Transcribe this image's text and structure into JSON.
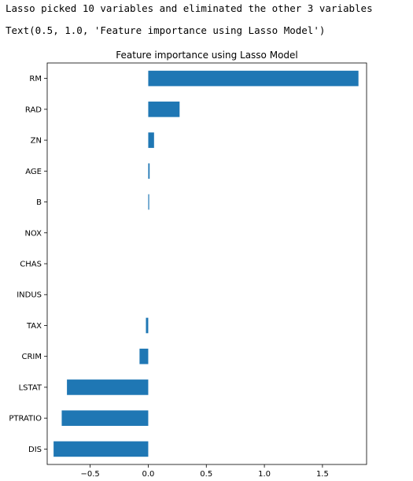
{
  "output": {
    "line1": "Lasso picked 10 variables and eliminated the other 3 variables",
    "line2": "Text(0.5, 1.0, 'Feature importance using Lasso Model')"
  },
  "chart_data": {
    "type": "bar",
    "orientation": "horizontal",
    "title": "Feature importance using Lasso Model",
    "xlabel": "",
    "ylabel": "",
    "categories": [
      "RM",
      "RAD",
      "ZN",
      "AGE",
      "B",
      "NOX",
      "CHAS",
      "INDUS",
      "TAX",
      "CRIM",
      "LSTAT",
      "PTRATIO",
      "DIS"
    ],
    "values": [
      1.81,
      0.27,
      0.05,
      0.012,
      0.008,
      0.0,
      0.0,
      0.0,
      -0.02,
      -0.075,
      -0.7,
      -0.745,
      -0.815
    ],
    "xticks": [
      -0.5,
      0.0,
      0.5,
      1.0,
      1.5
    ],
    "xtick_labels": [
      "−0.5",
      "0.0",
      "0.5",
      "1.0",
      "1.5"
    ],
    "xlim": [
      -0.87,
      1.88
    ],
    "bar_color": "#1f77b4",
    "grid": false,
    "legend": "none"
  }
}
